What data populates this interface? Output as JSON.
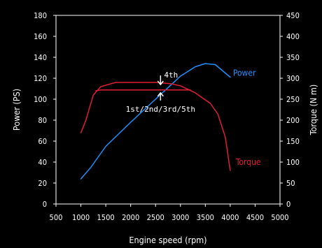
{
  "chart_data": {
    "type": "line",
    "xlabel": "Engine speed (rpm)",
    "ylabel_left": "Power (PS)",
    "ylabel_right": "Torque (N m)",
    "xlim": [
      500,
      5000
    ],
    "ylim_left": [
      0,
      180
    ],
    "ylim_right": [
      0,
      450
    ],
    "x_ticks": [
      500,
      1000,
      1500,
      2000,
      2500,
      3000,
      3500,
      4000,
      4500,
      5000
    ],
    "y_ticks_left": [
      0,
      20,
      40,
      60,
      80,
      100,
      120,
      140,
      160,
      180
    ],
    "y_ticks_right": [
      0,
      50,
      100,
      150,
      200,
      250,
      300,
      350,
      400,
      450
    ],
    "grid": false,
    "series": [
      {
        "name": "Power",
        "axis": "left",
        "color": "#1e90ff",
        "points": [
          [
            1000,
            24
          ],
          [
            1200,
            35
          ],
          [
            1500,
            55
          ],
          [
            2000,
            78
          ],
          [
            2500,
            100
          ],
          [
            3000,
            122
          ],
          [
            3300,
            131
          ],
          [
            3500,
            134
          ],
          [
            3700,
            133
          ],
          [
            3850,
            127
          ],
          [
            4000,
            121
          ]
        ]
      },
      {
        "name": "Torque",
        "axis": "right",
        "color": "#e01e32",
        "points": [
          [
            1000,
            170
          ],
          [
            1100,
            200
          ],
          [
            1250,
            260
          ],
          [
            1400,
            280
          ],
          [
            1700,
            290
          ],
          [
            2500,
            290
          ],
          [
            2800,
            287
          ],
          [
            3000,
            282
          ],
          [
            3300,
            265
          ],
          [
            3600,
            240
          ],
          [
            3750,
            215
          ],
          [
            3900,
            160
          ],
          [
            4000,
            80
          ]
        ]
      },
      {
        "name": "1st/2nd/3rd/5th",
        "axis": "right",
        "color": "#e01e32",
        "points": [
          [
            1300,
            270
          ],
          [
            1400,
            272
          ],
          [
            2000,
            272
          ],
          [
            2600,
            272
          ],
          [
            3200,
            272
          ]
        ]
      }
    ],
    "annotations": [
      {
        "text": "4th",
        "x": 2600,
        "y_right": 290,
        "arrow": "down"
      },
      {
        "text": "1st/2nd/3rd/5th",
        "x": 2600,
        "y_right": 272,
        "arrow": "up"
      }
    ]
  }
}
